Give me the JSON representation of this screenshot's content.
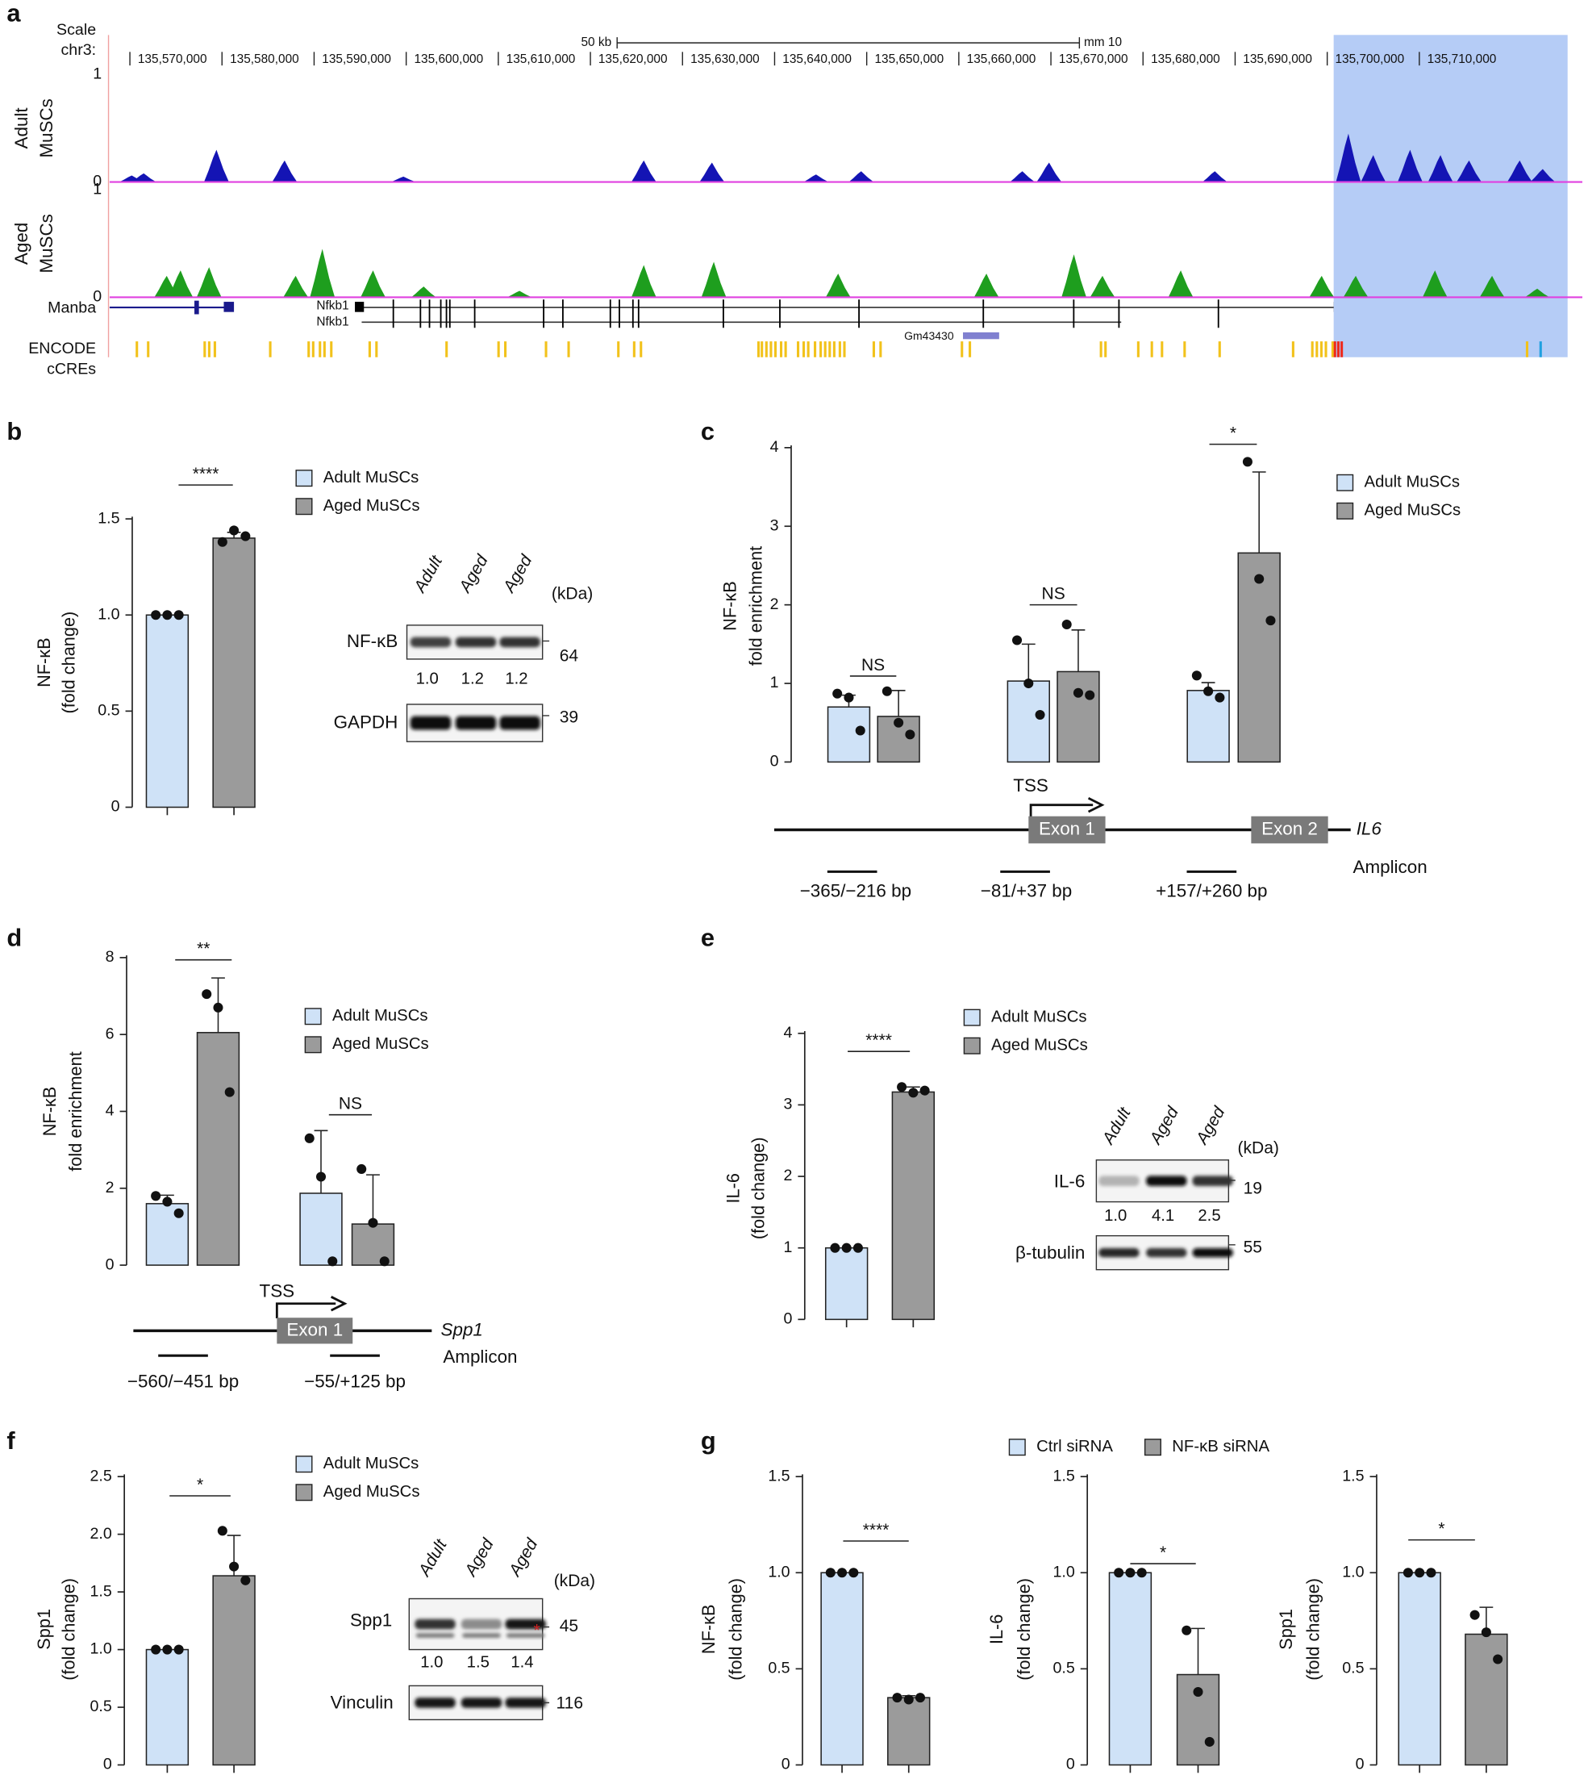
{
  "panels": [
    "a",
    "b",
    "c",
    "d",
    "e",
    "f",
    "g"
  ],
  "genome": {
    "scale_label": "Scale",
    "chrom": "chr3:",
    "scale_bar": "50 kb",
    "assembly": "mm 10",
    "xlim": [
      135567.8,
      135727.7
    ],
    "xticks": [
      {
        "value": 135570,
        "label": "135,570,000"
      },
      {
        "value": 135580,
        "label": "135,580,000"
      },
      {
        "value": 135590,
        "label": "135,590,000"
      },
      {
        "value": 135600,
        "label": "135,600,000"
      },
      {
        "value": 135610,
        "label": "135,610,000"
      },
      {
        "value": 135620,
        "label": "135,620,000"
      },
      {
        "value": 135630,
        "label": "135,630,000"
      },
      {
        "value": 135640,
        "label": "135,640,000"
      },
      {
        "value": 135650,
        "label": "135,650,000"
      },
      {
        "value": 135660,
        "label": "135,660,000"
      },
      {
        "value": 135670,
        "label": "135,670,000"
      },
      {
        "value": 135680,
        "label": "135,680,000"
      },
      {
        "value": 135690,
        "label": "135,690,000"
      },
      {
        "value": 135700,
        "label": "135,700,000"
      },
      {
        "value": 135710,
        "label": "135,710,000"
      }
    ],
    "highlight": [
      135700.7,
      135726.1
    ],
    "tracks": [
      {
        "name": [
          "Adult",
          "MuSCs"
        ],
        "color": "#1414b4",
        "tick_color": "#2020c0",
        "ylim": [
          0,
          1
        ],
        "yticks": [
          0,
          1
        ],
        "peaks": [
          {
            "x": 135570.2,
            "y": 0.06
          },
          {
            "x": 135571.5,
            "y": 0.08
          },
          {
            "x": 135579.4,
            "y": 0.3
          },
          {
            "x": 135586.8,
            "y": 0.2
          },
          {
            "x": 135599.7,
            "y": 0.05
          },
          {
            "x": 135625.8,
            "y": 0.2
          },
          {
            "x": 135633.2,
            "y": 0.18
          },
          {
            "x": 135644.5,
            "y": 0.07
          },
          {
            "x": 135649.4,
            "y": 0.1
          },
          {
            "x": 135666.9,
            "y": 0.1
          },
          {
            "x": 135669.8,
            "y": 0.18
          },
          {
            "x": 135687.8,
            "y": 0.1
          },
          {
            "x": 135702.3,
            "y": 0.45
          },
          {
            "x": 135705.0,
            "y": 0.25
          },
          {
            "x": 135709.0,
            "y": 0.3
          },
          {
            "x": 135712.3,
            "y": 0.25
          },
          {
            "x": 135715.4,
            "y": 0.2
          },
          {
            "x": 135720.9,
            "y": 0.2
          },
          {
            "x": 135723.4,
            "y": 0.12
          }
        ]
      },
      {
        "name": [
          "Aged",
          "MuSCs"
        ],
        "color": "#1e9e1e",
        "tick_color": "#1e9e1e",
        "ylim": [
          0,
          1
        ],
        "yticks": [
          0,
          1
        ],
        "peaks": [
          {
            "x": 135574.0,
            "y": 0.2
          },
          {
            "x": 135575.5,
            "y": 0.25
          },
          {
            "x": 135578.6,
            "y": 0.28
          },
          {
            "x": 135588.0,
            "y": 0.2
          },
          {
            "x": 135590.9,
            "y": 0.45
          },
          {
            "x": 135596.4,
            "y": 0.25
          },
          {
            "x": 135601.9,
            "y": 0.1
          },
          {
            "x": 135612.3,
            "y": 0.06
          },
          {
            "x": 135625.8,
            "y": 0.3
          },
          {
            "x": 135633.4,
            "y": 0.33
          },
          {
            "x": 135646.9,
            "y": 0.22
          },
          {
            "x": 135663.0,
            "y": 0.22
          },
          {
            "x": 135672.5,
            "y": 0.4
          },
          {
            "x": 135675.6,
            "y": 0.2
          },
          {
            "x": 135684.1,
            "y": 0.25
          },
          {
            "x": 135699.4,
            "y": 0.2
          },
          {
            "x": 135703.1,
            "y": 0.2
          },
          {
            "x": 135711.7,
            "y": 0.25
          },
          {
            "x": 135717.9,
            "y": 0.2
          },
          {
            "x": 135722.8,
            "y": 0.08
          }
        ]
      }
    ],
    "genes": [
      "Manba",
      "Nfkb1",
      "Nfkb1",
      "Gm43430"
    ],
    "ccre_label": [
      "ENCODE",
      "cCREs"
    ]
  },
  "chart_data": [
    {
      "type": "bar",
      "ylabel": [
        "NF-κB",
        "(fold change)"
      ],
      "ylim": [
        0,
        1.5
      ],
      "yticks": [
        0,
        0.5,
        {
          "value": 1,
          "label": "1.0"
        },
        1.5
      ],
      "significance": [
        "****"
      ],
      "series": [
        {
          "name": "Adult MuSCs",
          "color": "#cfe2f7",
          "values": [
            1.0
          ],
          "errors": [
            null
          ],
          "points": [
            [
              1.0,
              1.0,
              1.0
            ]
          ]
        },
        {
          "name": "Aged MuSCs",
          "color": "#9b9b9b",
          "values": [
            1.4
          ],
          "errors": [
            0.03
          ],
          "points": [
            [
              1.38,
              1.44,
              1.41
            ]
          ]
        }
      ]
    },
    {
      "type": "bar",
      "ylabel": [
        "NF-κB",
        "fold enrichment"
      ],
      "ylim": [
        0,
        4
      ],
      "yticks": [
        0,
        1,
        2,
        3,
        4
      ],
      "categories": [
        "−365/−216 bp",
        "−81/+37 bp",
        "+157/+260 bp"
      ],
      "significance": [
        "NS",
        "NS",
        "*"
      ],
      "series": [
        {
          "name": "Adult MuSCs",
          "color": "#cfe2f7",
          "values": [
            0.7,
            1.03,
            0.91
          ],
          "errors": [
            0.15,
            0.47,
            0.1
          ],
          "points": [
            [
              0.87,
              0.82,
              0.4
            ],
            [
              1.55,
              1.0,
              0.6
            ],
            [
              1.1,
              0.9,
              0.82
            ]
          ]
        },
        {
          "name": "Aged MuSCs",
          "color": "#9b9b9b",
          "values": [
            0.58,
            1.15,
            2.66
          ],
          "errors": [
            0.33,
            0.53,
            1.03
          ],
          "points": [
            [
              0.9,
              0.5,
              0.35
            ],
            [
              1.75,
              0.88,
              0.85
            ],
            [
              3.82,
              2.33,
              1.8
            ]
          ]
        }
      ]
    },
    {
      "type": "bar",
      "ylabel": [
        "NF-κB",
        "fold enrichment"
      ],
      "ylim": [
        0,
        8
      ],
      "yticks": [
        0,
        2,
        4,
        6,
        8
      ],
      "categories": [
        "−560/−451 bp",
        "−55/+125 bp"
      ],
      "significance": [
        "**",
        "NS"
      ],
      "series": [
        {
          "name": "Adult MuSCs",
          "color": "#cfe2f7",
          "values": [
            1.6,
            1.87
          ],
          "errors": [
            0.22,
            1.63
          ],
          "points": [
            [
              1.8,
              1.65,
              1.35
            ],
            [
              3.3,
              2.3,
              0.1
            ]
          ]
        },
        {
          "name": "Aged MuSCs",
          "color": "#9b9b9b",
          "values": [
            6.05,
            1.07
          ],
          "errors": [
            1.42,
            1.28
          ],
          "points": [
            [
              7.05,
              6.7,
              4.5
            ],
            [
              2.5,
              1.1,
              0.1
            ]
          ]
        }
      ]
    },
    {
      "type": "bar",
      "ylabel": [
        "IL-6",
        "(fold change)"
      ],
      "ylim": [
        0,
        4
      ],
      "yticks": [
        0,
        1,
        2,
        3,
        4
      ],
      "significance": [
        "****"
      ],
      "series": [
        {
          "name": "Adult MuSCs",
          "color": "#cfe2f7",
          "values": [
            1.0
          ],
          "errors": [
            null
          ],
          "points": [
            [
              1.0,
              1.0,
              1.0
            ]
          ]
        },
        {
          "name": "Aged MuSCs",
          "color": "#9b9b9b",
          "values": [
            3.18
          ],
          "errors": [
            0.07
          ],
          "points": [
            [
              3.25,
              3.17,
              3.2
            ]
          ]
        }
      ]
    },
    {
      "type": "bar",
      "ylabel": [
        "Spp1",
        "(fold change)"
      ],
      "ylim": [
        0,
        2.5
      ],
      "yticks": [
        0,
        0.5,
        {
          "value": 1,
          "label": "1.0"
        },
        1.5,
        {
          "value": 2,
          "label": "2.0"
        },
        2.5
      ],
      "significance": [
        "*"
      ],
      "series": [
        {
          "name": "Adult MuSCs",
          "color": "#cfe2f7",
          "values": [
            1.0
          ],
          "errors": [
            null
          ],
          "points": [
            [
              1.0,
              1.0,
              1.0
            ]
          ]
        },
        {
          "name": "Aged MuSCs",
          "color": "#9b9b9b",
          "values": [
            1.64
          ],
          "errors": [
            0.35
          ],
          "points": [
            [
              2.03,
              1.72,
              1.6
            ]
          ]
        }
      ]
    },
    {
      "type": "bar",
      "ylabel": [
        "NF-κB",
        "(fold change)"
      ],
      "ylim": [
        0,
        1.5
      ],
      "yticks": [
        0,
        0.5,
        {
          "value": 1,
          "label": "1.0"
        },
        1.5
      ],
      "significance": [
        "****"
      ],
      "series": [
        {
          "name": "Ctrl siRNA",
          "color": "#cfe2f7",
          "values": [
            1.0
          ],
          "errors": [
            null
          ],
          "points": [
            [
              1.0,
              1.0,
              1.0
            ]
          ]
        },
        {
          "name": "NF-κB siRNA",
          "color": "#9b9b9b",
          "values": [
            0.35
          ],
          "errors": [
            0.01
          ],
          "points": [
            [
              0.35,
              0.34,
              0.35
            ]
          ]
        }
      ]
    },
    {
      "type": "bar",
      "ylabel": [
        "IL-6",
        "(fold change)"
      ],
      "ylim": [
        0,
        1.5
      ],
      "yticks": [
        0,
        0.5,
        {
          "value": 1,
          "label": "1.0"
        },
        1.5
      ],
      "significance": [
        "*"
      ],
      "series": [
        {
          "color": "#cfe2f7",
          "values": [
            1.0
          ],
          "errors": [
            null
          ],
          "points": [
            [
              1.0,
              1.0,
              1.0
            ]
          ]
        },
        {
          "color": "#9b9b9b",
          "values": [
            0.47
          ],
          "errors": [
            0.24
          ],
          "points": [
            [
              0.7,
              0.38,
              0.12
            ]
          ]
        }
      ]
    },
    {
      "type": "bar",
      "ylabel": [
        "Spp1",
        "(fold change)"
      ],
      "ylim": [
        0,
        1.5
      ],
      "yticks": [
        0,
        0.5,
        {
          "value": 1,
          "label": "1.0"
        },
        1.5
      ],
      "significance": [
        "*"
      ],
      "series": [
        {
          "color": "#cfe2f7",
          "values": [
            1.0
          ],
          "errors": [
            null
          ],
          "points": [
            [
              1.0,
              1.0,
              1.0
            ]
          ]
        },
        {
          "color": "#9b9b9b",
          "values": [
            0.68
          ],
          "errors": [
            0.14
          ],
          "points": [
            [
              0.78,
              0.69,
              0.55
            ]
          ]
        }
      ]
    }
  ],
  "blots": [
    {
      "lanes": [
        "Adult",
        "Aged",
        "Aged"
      ],
      "unit": "(kDa)",
      "rows": [
        {
          "name": "NF-κB",
          "marker": 64,
          "quant": [
            "1.0",
            "1.2",
            "1.2"
          ]
        },
        {
          "name": "GAPDH",
          "marker": 39
        }
      ]
    },
    {
      "lanes": [
        "Adult",
        "Aged",
        "Aged"
      ],
      "unit": "(kDa)",
      "rows": [
        {
          "name": "IL-6",
          "marker": 19,
          "quant": [
            "1.0",
            "4.1",
            "2.5"
          ]
        },
        {
          "name": "β-tubulin",
          "marker": 55
        }
      ]
    },
    {
      "lanes": [
        "Adult",
        "Aged",
        "Aged"
      ],
      "unit": "(kDa)",
      "rows": [
        {
          "name": "Spp1",
          "marker": 45,
          "quant": [
            "1.0",
            "1.5",
            "1.4"
          ],
          "star": "*"
        },
        {
          "name": "Vinculin",
          "marker": 116
        }
      ]
    }
  ],
  "diagrams": [
    {
      "tss": "TSS",
      "exons": [
        "Exon 1",
        "Exon 2"
      ],
      "gene": "IL6",
      "amplicon": "Amplicon"
    },
    {
      "tss": "TSS",
      "exons": [
        "Exon 1"
      ],
      "gene": "Spp1",
      "amplicon": "Amplicon"
    }
  ]
}
